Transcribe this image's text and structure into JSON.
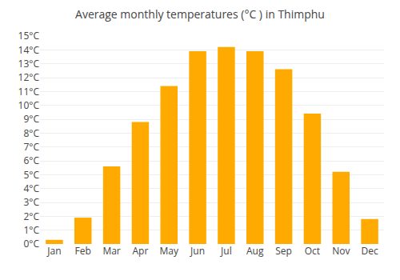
{
  "chart_data": {
    "type": "bar",
    "title": "Average monthly temperatures (°C ) in Thimphu",
    "categories": [
      "Jan",
      "Feb",
      "Mar",
      "Apr",
      "May",
      "Jun",
      "Jul",
      "Aug",
      "Sep",
      "Oct",
      "Nov",
      "Dec"
    ],
    "values": [
      0.3,
      1.9,
      5.6,
      8.8,
      11.4,
      13.9,
      14.2,
      13.9,
      12.6,
      9.4,
      5.2,
      1.8
    ],
    "color": "#FFAA00",
    "ylim": [
      0,
      15
    ],
    "yticks": [
      {
        "value": 0,
        "label": "0°C"
      },
      {
        "value": 1,
        "label": "1°C"
      },
      {
        "value": 2,
        "label": "2°C"
      },
      {
        "value": 3,
        "label": "3°C"
      },
      {
        "value": 4,
        "label": "4°C"
      },
      {
        "value": 5,
        "label": "5°C"
      },
      {
        "value": 6,
        "label": "6°C"
      },
      {
        "value": 7,
        "label": "7°C"
      },
      {
        "value": 8,
        "label": "8°C"
      },
      {
        "value": 9,
        "label": "9°C"
      },
      {
        "value": 10,
        "label": "10°C"
      },
      {
        "value": 11,
        "label": "11°C"
      },
      {
        "value": 12,
        "label": "12°C"
      },
      {
        "value": 13,
        "label": "13°C"
      },
      {
        "value": 14,
        "label": "14°C"
      },
      {
        "value": 15,
        "label": "15°C"
      }
    ],
    "grid": true
  }
}
